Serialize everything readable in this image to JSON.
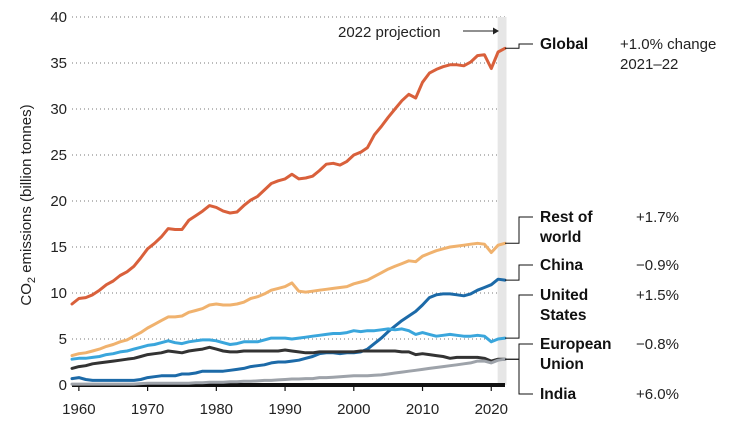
{
  "chart_data": {
    "type": "line",
    "title": "",
    "xlabel": "",
    "ylabel": "CO2 emissions (billion tonnes)",
    "ylabel_parts": {
      "pre": "CO",
      "sub": "2",
      "post": " emissions (billion tonnes)"
    },
    "xlim": [
      1959,
      2022
    ],
    "ylim": [
      0,
      40
    ],
    "xticks": [
      1960,
      1970,
      1980,
      1990,
      2000,
      2010,
      2020
    ],
    "xtick_labels": [
      "1960",
      "1970",
      "1980",
      "1990",
      "2000",
      "2010",
      "2020"
    ],
    "yticks": [
      0,
      5,
      10,
      15,
      20,
      25,
      30,
      35,
      40
    ],
    "ytick_labels": [
      "0",
      "5",
      "10",
      "15",
      "20",
      "25",
      "30",
      "35",
      "40"
    ],
    "annotation": {
      "text": "2022 projection",
      "year": 2022
    },
    "series": [
      {
        "name": "Global",
        "name_lines": [
          "Global"
        ],
        "change_lines": [
          "+1.0% change",
          "2021–22"
        ],
        "color": "#d9603b",
        "x": [
          1959,
          1960,
          1961,
          1962,
          1963,
          1964,
          1965,
          1966,
          1967,
          1968,
          1969,
          1970,
          1971,
          1972,
          1973,
          1974,
          1975,
          1976,
          1977,
          1978,
          1979,
          1980,
          1981,
          1982,
          1983,
          1984,
          1985,
          1986,
          1987,
          1988,
          1989,
          1990,
          1991,
          1992,
          1993,
          1994,
          1995,
          1996,
          1997,
          1998,
          1999,
          2000,
          2001,
          2002,
          2003,
          2004,
          2005,
          2006,
          2007,
          2008,
          2009,
          2010,
          2011,
          2012,
          2013,
          2014,
          2015,
          2016,
          2017,
          2018,
          2019,
          2020,
          2021,
          2022
        ],
        "values": [
          8.8,
          9.4,
          9.5,
          9.8,
          10.3,
          10.9,
          11.3,
          11.9,
          12.3,
          12.9,
          13.8,
          14.8,
          15.4,
          16.1,
          17.0,
          16.9,
          16.9,
          17.9,
          18.4,
          18.9,
          19.5,
          19.3,
          18.9,
          18.7,
          18.8,
          19.5,
          20.1,
          20.5,
          21.2,
          21.9,
          22.2,
          22.4,
          22.9,
          22.4,
          22.5,
          22.7,
          23.3,
          24.0,
          24.1,
          23.9,
          24.3,
          25.0,
          25.3,
          25.8,
          27.2,
          28.1,
          29.1,
          30.0,
          30.9,
          31.6,
          31.2,
          32.9,
          33.9,
          34.3,
          34.6,
          34.8,
          34.8,
          34.7,
          35.1,
          35.8,
          35.9,
          34.4,
          36.2,
          36.6
        ]
      },
      {
        "name": "Rest of world",
        "name_lines": [
          "Rest of",
          "world"
        ],
        "change_lines": [
          "+1.7%"
        ],
        "color": "#f0b26e",
        "x": [
          1959,
          1960,
          1961,
          1962,
          1963,
          1964,
          1965,
          1966,
          1967,
          1968,
          1969,
          1970,
          1971,
          1972,
          1973,
          1974,
          1975,
          1976,
          1977,
          1978,
          1979,
          1980,
          1981,
          1982,
          1983,
          1984,
          1985,
          1986,
          1987,
          1988,
          1989,
          1990,
          1991,
          1992,
          1993,
          1994,
          1995,
          1996,
          1997,
          1998,
          1999,
          2000,
          2001,
          2002,
          2003,
          2004,
          2005,
          2006,
          2007,
          2008,
          2009,
          2010,
          2011,
          2012,
          2013,
          2014,
          2015,
          2016,
          2017,
          2018,
          2019,
          2020,
          2021,
          2022
        ],
        "values": [
          3.2,
          3.4,
          3.5,
          3.7,
          3.9,
          4.2,
          4.4,
          4.7,
          4.9,
          5.3,
          5.7,
          6.2,
          6.6,
          7.0,
          7.4,
          7.4,
          7.5,
          7.9,
          8.1,
          8.3,
          8.7,
          8.8,
          8.7,
          8.7,
          8.8,
          9.0,
          9.4,
          9.6,
          9.9,
          10.3,
          10.5,
          10.7,
          11.1,
          10.2,
          10.1,
          10.2,
          10.3,
          10.4,
          10.5,
          10.6,
          10.7,
          11.0,
          11.2,
          11.4,
          11.8,
          12.2,
          12.6,
          12.9,
          13.2,
          13.5,
          13.4,
          14.0,
          14.3,
          14.6,
          14.8,
          15.0,
          15.1,
          15.2,
          15.3,
          15.4,
          15.3,
          14.4,
          15.2,
          15.4
        ]
      },
      {
        "name": "China",
        "name_lines": [
          "China"
        ],
        "change_lines": [
          "−0.9%"
        ],
        "color": "#1c6aa8",
        "x": [
          1959,
          1960,
          1961,
          1962,
          1963,
          1964,
          1965,
          1966,
          1967,
          1968,
          1969,
          1970,
          1971,
          1972,
          1973,
          1974,
          1975,
          1976,
          1977,
          1978,
          1979,
          1980,
          1981,
          1982,
          1983,
          1984,
          1985,
          1986,
          1987,
          1988,
          1989,
          1990,
          1991,
          1992,
          1993,
          1994,
          1995,
          1996,
          1997,
          1998,
          1999,
          2000,
          2001,
          2002,
          2003,
          2004,
          2005,
          2006,
          2007,
          2008,
          2009,
          2010,
          2011,
          2012,
          2013,
          2014,
          2015,
          2016,
          2017,
          2018,
          2019,
          2020,
          2021,
          2022
        ],
        "values": [
          0.7,
          0.8,
          0.6,
          0.5,
          0.5,
          0.5,
          0.5,
          0.5,
          0.5,
          0.5,
          0.6,
          0.8,
          0.9,
          1.0,
          1.0,
          1.0,
          1.2,
          1.2,
          1.3,
          1.5,
          1.5,
          1.5,
          1.5,
          1.6,
          1.7,
          1.8,
          2.0,
          2.1,
          2.2,
          2.4,
          2.5,
          2.5,
          2.6,
          2.7,
          2.9,
          3.1,
          3.4,
          3.5,
          3.5,
          3.4,
          3.5,
          3.5,
          3.6,
          3.9,
          4.5,
          5.1,
          5.8,
          6.4,
          7.0,
          7.5,
          8.0,
          8.7,
          9.5,
          9.8,
          9.9,
          9.9,
          9.8,
          9.7,
          9.9,
          10.3,
          10.6,
          10.9,
          11.5,
          11.4
        ]
      },
      {
        "name": "United States",
        "name_lines": [
          "United",
          "States"
        ],
        "change_lines": [
          "+1.5%"
        ],
        "color": "#3aa6dc",
        "x": [
          1959,
          1960,
          1961,
          1962,
          1963,
          1964,
          1965,
          1966,
          1967,
          1968,
          1969,
          1970,
          1971,
          1972,
          1973,
          1974,
          1975,
          1976,
          1977,
          1978,
          1979,
          1980,
          1981,
          1982,
          1983,
          1984,
          1985,
          1986,
          1987,
          1988,
          1989,
          1990,
          1991,
          1992,
          1993,
          1994,
          1995,
          1996,
          1997,
          1998,
          1999,
          2000,
          2001,
          2002,
          2003,
          2004,
          2005,
          2006,
          2007,
          2008,
          2009,
          2010,
          2011,
          2012,
          2013,
          2014,
          2015,
          2016,
          2017,
          2018,
          2019,
          2020,
          2021,
          2022
        ],
        "values": [
          2.8,
          2.9,
          2.9,
          3.0,
          3.1,
          3.3,
          3.4,
          3.6,
          3.7,
          3.9,
          4.1,
          4.3,
          4.4,
          4.6,
          4.8,
          4.6,
          4.5,
          4.7,
          4.8,
          4.9,
          4.9,
          4.8,
          4.6,
          4.4,
          4.5,
          4.7,
          4.7,
          4.7,
          4.9,
          5.1,
          5.1,
          5.1,
          5.0,
          5.1,
          5.2,
          5.3,
          5.4,
          5.5,
          5.6,
          5.6,
          5.7,
          5.9,
          5.8,
          5.9,
          5.9,
          6.0,
          6.1,
          6.0,
          6.1,
          5.9,
          5.5,
          5.7,
          5.5,
          5.3,
          5.4,
          5.5,
          5.4,
          5.3,
          5.3,
          5.4,
          5.3,
          4.7,
          5.0,
          5.1
        ]
      },
      {
        "name": "European Union",
        "name_lines": [
          "European",
          "Union"
        ],
        "change_lines": [
          "−0.8%"
        ],
        "color": "#333333",
        "x": [
          1959,
          1960,
          1961,
          1962,
          1963,
          1964,
          1965,
          1966,
          1967,
          1968,
          1969,
          1970,
          1971,
          1972,
          1973,
          1974,
          1975,
          1976,
          1977,
          1978,
          1979,
          1980,
          1981,
          1982,
          1983,
          1984,
          1985,
          1986,
          1987,
          1988,
          1989,
          1990,
          1991,
          1992,
          1993,
          1994,
          1995,
          1996,
          1997,
          1998,
          1999,
          2000,
          2001,
          2002,
          2003,
          2004,
          2005,
          2006,
          2007,
          2008,
          2009,
          2010,
          2011,
          2012,
          2013,
          2014,
          2015,
          2016,
          2017,
          2018,
          2019,
          2020,
          2021,
          2022
        ],
        "values": [
          1.8,
          2.0,
          2.1,
          2.3,
          2.4,
          2.5,
          2.6,
          2.7,
          2.8,
          2.9,
          3.1,
          3.3,
          3.4,
          3.5,
          3.7,
          3.6,
          3.5,
          3.7,
          3.8,
          3.9,
          4.1,
          3.9,
          3.7,
          3.6,
          3.6,
          3.7,
          3.7,
          3.7,
          3.7,
          3.7,
          3.7,
          3.8,
          3.7,
          3.6,
          3.5,
          3.5,
          3.6,
          3.6,
          3.6,
          3.6,
          3.6,
          3.6,
          3.7,
          3.7,
          3.7,
          3.7,
          3.7,
          3.7,
          3.6,
          3.6,
          3.3,
          3.4,
          3.3,
          3.2,
          3.1,
          2.9,
          3.0,
          3.0,
          3.0,
          3.0,
          2.9,
          2.6,
          2.8,
          2.8
        ]
      },
      {
        "name": "India",
        "name_lines": [
          "India"
        ],
        "change_lines": [
          "+6.0%"
        ],
        "color": "#9ea3aa",
        "x": [
          1959,
          1960,
          1961,
          1962,
          1963,
          1964,
          1965,
          1966,
          1967,
          1968,
          1969,
          1970,
          1971,
          1972,
          1973,
          1974,
          1975,
          1976,
          1977,
          1978,
          1979,
          1980,
          1981,
          1982,
          1983,
          1984,
          1985,
          1986,
          1987,
          1988,
          1989,
          1990,
          1991,
          1992,
          1993,
          1994,
          1995,
          1996,
          1997,
          1998,
          1999,
          2000,
          2001,
          2002,
          2003,
          2004,
          2005,
          2006,
          2007,
          2008,
          2009,
          2010,
          2011,
          2012,
          2013,
          2014,
          2015,
          2016,
          2017,
          2018,
          2019,
          2020,
          2021,
          2022
        ],
        "values": [
          0.1,
          0.1,
          0.1,
          0.1,
          0.1,
          0.1,
          0.1,
          0.1,
          0.1,
          0.1,
          0.15,
          0.2,
          0.2,
          0.2,
          0.2,
          0.2,
          0.2,
          0.2,
          0.25,
          0.25,
          0.3,
          0.3,
          0.3,
          0.35,
          0.35,
          0.4,
          0.4,
          0.45,
          0.5,
          0.5,
          0.55,
          0.6,
          0.65,
          0.65,
          0.7,
          0.7,
          0.8,
          0.8,
          0.85,
          0.9,
          0.95,
          1.0,
          1.0,
          1.0,
          1.05,
          1.1,
          1.2,
          1.3,
          1.4,
          1.5,
          1.6,
          1.7,
          1.8,
          1.9,
          2.0,
          2.1,
          2.2,
          2.3,
          2.4,
          2.6,
          2.6,
          2.4,
          2.7,
          2.8
        ]
      }
    ]
  }
}
